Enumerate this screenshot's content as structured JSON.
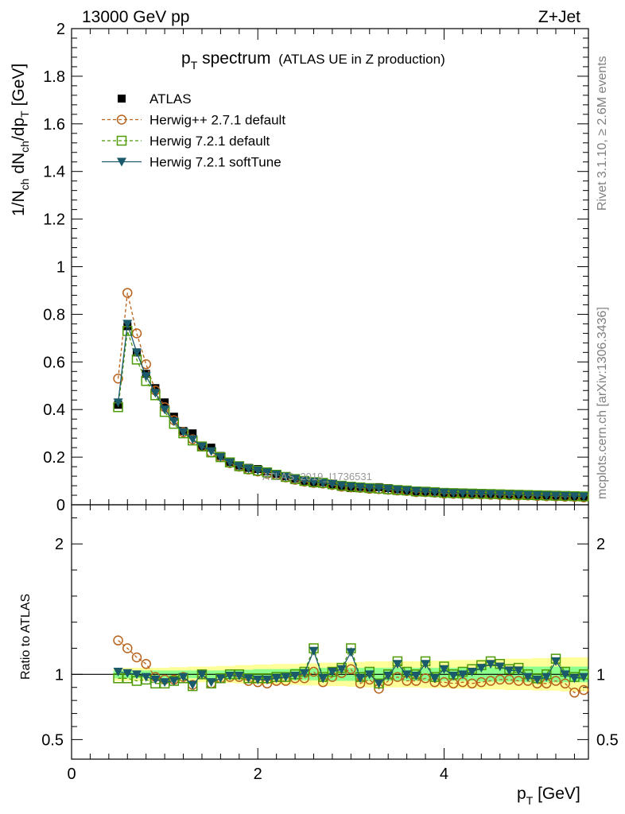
{
  "header": {
    "left": "13000 GeV pp",
    "right": "Z+Jet",
    "title_main": "p",
    "title_sub": "T",
    "title_rest": " spectrum",
    "title_paren": "(ATLAS UE in Z production)"
  },
  "side_text": {
    "top": "Rivet 3.1.10, ≥ 2.6M events",
    "bottom": "mcplots.cern.ch [arXiv:1306.3436]"
  },
  "watermark": "ATLAS_2019_I1736531",
  "y_axis_label": "1/N_ch dN_ch/dp_T [GeV]",
  "ratio_axis_label": "Ratio to ATLAS",
  "x_axis_label": "p_T [GeV]",
  "colors": {
    "atlas": "#000000",
    "herwigpp": "#b8621b",
    "herwig_default": "#4e9a06",
    "herwig_soft": "#1a5a6a",
    "band_inner": "#8cff8c",
    "band_outer": "#ffff99"
  },
  "chart_data": [
    {
      "type": "scatter",
      "panel": "main",
      "xlim": [
        0,
        5.55
      ],
      "ylim": [
        0,
        2
      ],
      "yticks": [
        0,
        0.2,
        0.4,
        0.6,
        0.8,
        1,
        1.2,
        1.4,
        1.6,
        1.8,
        2
      ],
      "ytick_labels": [
        "0",
        "0.2",
        "0.4",
        "0.6",
        "0.8",
        "1",
        "1.2",
        "1.4",
        "1.6",
        "1.8",
        "2"
      ],
      "x": [
        0.5,
        0.6,
        0.7,
        0.8,
        0.9,
        1.0,
        1.1,
        1.2,
        1.3,
        1.4,
        1.5,
        1.6,
        1.7,
        1.8,
        1.9,
        2.0,
        2.1,
        2.2,
        2.3,
        2.4,
        2.5,
        2.6,
        2.7,
        2.8,
        2.9,
        3.0,
        3.1,
        3.2,
        3.3,
        3.4,
        3.5,
        3.6,
        3.7,
        3.8,
        3.9,
        4.0,
        4.1,
        4.2,
        4.3,
        4.4,
        4.5,
        4.6,
        4.7,
        4.8,
        4.9,
        5.0,
        5.1,
        5.2,
        5.3,
        5.4,
        5.5
      ],
      "legend": [
        "ATLAS",
        "Herwig++ 2.7.1 default",
        "Herwig 7.2.1 default",
        "Herwig 7.2.1 softTune"
      ],
      "series": [
        {
          "name": "ATLAS",
          "values": [
            0.42,
            0.75,
            0.64,
            0.55,
            0.49,
            0.43,
            0.37,
            0.31,
            0.3,
            0.245,
            0.24,
            0.205,
            0.18,
            0.165,
            0.155,
            0.15,
            0.14,
            0.13,
            0.12,
            0.11,
            0.1,
            0.09,
            0.095,
            0.085,
            0.075,
            0.07,
            0.075,
            0.072,
            0.074,
            0.07,
            0.065,
            0.06,
            0.056,
            0.055,
            0.055,
            0.05,
            0.049,
            0.048,
            0.047,
            0.046,
            0.044,
            0.043,
            0.042,
            0.041,
            0.041,
            0.04,
            0.039,
            0.038,
            0.037,
            0.036,
            0.034
          ]
        },
        {
          "name": "Herwig++ 2.7.1 default",
          "values": [
            0.53,
            0.89,
            0.72,
            0.59,
            0.48,
            0.41,
            0.355,
            0.305,
            0.275,
            0.245,
            0.22,
            0.2,
            0.175,
            0.16,
            0.148,
            0.14,
            0.13,
            0.125,
            0.115,
            0.105,
            0.097,
            0.092,
            0.089,
            0.083,
            0.076,
            0.073,
            0.071,
            0.067,
            0.066,
            0.063,
            0.06,
            0.058,
            0.053,
            0.053,
            0.051,
            0.047,
            0.046,
            0.045,
            0.044,
            0.043,
            0.042,
            0.041,
            0.04,
            0.039,
            0.039,
            0.037,
            0.036,
            0.035,
            0.034,
            0.033,
            0.031
          ]
        },
        {
          "name": "Herwig 7.2.1 default",
          "values": [
            0.41,
            0.73,
            0.61,
            0.52,
            0.46,
            0.39,
            0.34,
            0.3,
            0.27,
            0.245,
            0.22,
            0.2,
            0.178,
            0.162,
            0.15,
            0.143,
            0.136,
            0.126,
            0.117,
            0.108,
            0.1,
            0.095,
            0.092,
            0.086,
            0.08,
            0.076,
            0.073,
            0.07,
            0.068,
            0.065,
            0.062,
            0.06,
            0.056,
            0.055,
            0.053,
            0.05,
            0.049,
            0.048,
            0.047,
            0.046,
            0.045,
            0.044,
            0.043,
            0.042,
            0.041,
            0.04,
            0.039,
            0.038,
            0.037,
            0.036,
            0.035
          ]
        },
        {
          "name": "Herwig 7.2.1 softTune",
          "values": [
            0.43,
            0.76,
            0.64,
            0.54,
            0.47,
            0.4,
            0.35,
            0.305,
            0.275,
            0.245,
            0.225,
            0.2,
            0.178,
            0.163,
            0.152,
            0.144,
            0.136,
            0.127,
            0.118,
            0.109,
            0.101,
            0.096,
            0.092,
            0.087,
            0.081,
            0.077,
            0.074,
            0.071,
            0.069,
            0.066,
            0.063,
            0.06,
            0.057,
            0.055,
            0.053,
            0.051,
            0.049,
            0.048,
            0.047,
            0.046,
            0.045,
            0.044,
            0.043,
            0.042,
            0.041,
            0.04,
            0.039,
            0.038,
            0.037,
            0.036,
            0.035
          ]
        }
      ]
    },
    {
      "type": "line",
      "panel": "ratio",
      "xlim": [
        0,
        5.55
      ],
      "ylim": [
        0.35,
        2.3
      ],
      "yticks": [
        0.5,
        1,
        2
      ],
      "ytick_labels": [
        "0.5",
        "1",
        "2"
      ],
      "xticks": [
        0,
        2,
        4
      ],
      "xtick_labels": [
        "0",
        "2",
        "4"
      ],
      "x": [
        0.5,
        0.6,
        0.7,
        0.8,
        0.9,
        1.0,
        1.1,
        1.2,
        1.3,
        1.4,
        1.5,
        1.6,
        1.7,
        1.8,
        1.9,
        2.0,
        2.1,
        2.2,
        2.3,
        2.4,
        2.5,
        2.6,
        2.7,
        2.8,
        2.9,
        3.0,
        3.1,
        3.2,
        3.3,
        3.4,
        3.5,
        3.6,
        3.7,
        3.8,
        3.9,
        4.0,
        4.1,
        4.2,
        4.3,
        4.4,
        4.5,
        4.6,
        4.7,
        4.8,
        4.9,
        5.0,
        5.1,
        5.2,
        5.3,
        5.4,
        5.5
      ],
      "band_inner": [
        0.03,
        0.03,
        0.03,
        0.03,
        0.03,
        0.03,
        0.03,
        0.03,
        0.03,
        0.03,
        0.03,
        0.03,
        0.035,
        0.035,
        0.035,
        0.04,
        0.04,
        0.04,
        0.04,
        0.045,
        0.045,
        0.045,
        0.05,
        0.05,
        0.05,
        0.05,
        0.05,
        0.05,
        0.05,
        0.05,
        0.05,
        0.05,
        0.05,
        0.05,
        0.05,
        0.05,
        0.05,
        0.05,
        0.05,
        0.055,
        0.055,
        0.055,
        0.055,
        0.055,
        0.06,
        0.06,
        0.06,
        0.06,
        0.06,
        0.06,
        0.06
      ],
      "band_outer": [
        0.05,
        0.05,
        0.05,
        0.05,
        0.05,
        0.05,
        0.055,
        0.055,
        0.06,
        0.06,
        0.06,
        0.065,
        0.065,
        0.07,
        0.07,
        0.075,
        0.075,
        0.08,
        0.08,
        0.08,
        0.085,
        0.085,
        0.09,
        0.09,
        0.09,
        0.095,
        0.095,
        0.1,
        0.1,
        0.1,
        0.1,
        0.1,
        0.1,
        0.105,
        0.105,
        0.105,
        0.11,
        0.11,
        0.11,
        0.115,
        0.115,
        0.115,
        0.12,
        0.12,
        0.12,
        0.125,
        0.125,
        0.125,
        0.13,
        0.13,
        0.13
      ],
      "series": [
        {
          "name": "Herwig++ 2.7.1 default",
          "values": [
            1.26,
            1.2,
            1.13,
            1.08,
            0.98,
            0.96,
            0.96,
            0.98,
            0.92,
            1.0,
            0.93,
            0.97,
            0.98,
            0.98,
            0.95,
            0.94,
            0.93,
            0.95,
            0.95,
            0.97,
            0.97,
            1.02,
            0.94,
            0.98,
            1.01,
            1.04,
            0.93,
            0.96,
            0.89,
            0.95,
            0.98,
            0.95,
            0.95,
            0.97,
            0.94,
            0.94,
            0.93,
            0.94,
            0.93,
            0.94,
            0.95,
            0.96,
            0.96,
            0.95,
            0.95,
            0.93,
            0.93,
            0.95,
            0.93,
            0.86,
            0.88
          ]
        },
        {
          "name": "Herwig 7.2.1 default",
          "values": [
            0.97,
            0.97,
            0.95,
            0.96,
            0.93,
            0.93,
            0.95,
            0.97,
            0.91,
            1.0,
            0.93,
            0.97,
            1.0,
            1.0,
            0.97,
            0.97,
            0.97,
            0.98,
            0.98,
            1.0,
            1.02,
            1.2,
            0.98,
            1.02,
            1.05,
            1.2,
            0.98,
            1.02,
            0.93,
            1.0,
            1.1,
            1.02,
            1.0,
            1.1,
            0.98,
            1.06,
            1.0,
            1.02,
            1.04,
            1.07,
            1.1,
            1.08,
            1.04,
            1.05,
            1.0,
            0.97,
            1.0,
            1.12,
            1.02,
            0.98,
            1.0
          ]
        },
        {
          "name": "Herwig 7.2.1 softTune",
          "values": [
            1.02,
            1.01,
            1.0,
            0.98,
            0.96,
            0.94,
            0.95,
            0.98,
            0.92,
            1.0,
            0.94,
            0.97,
            0.99,
            0.99,
            0.97,
            0.96,
            0.96,
            0.97,
            0.98,
            0.99,
            1.01,
            1.18,
            0.97,
            1.02,
            1.04,
            1.17,
            0.97,
            1.0,
            0.93,
            0.99,
            1.08,
            1.0,
            0.99,
            1.08,
            0.97,
            1.04,
            0.99,
            1.0,
            1.02,
            1.05,
            1.08,
            1.06,
            1.03,
            1.03,
            0.98,
            0.96,
            0.98,
            1.1,
            1.0,
            0.97,
            0.98
          ]
        }
      ]
    }
  ]
}
